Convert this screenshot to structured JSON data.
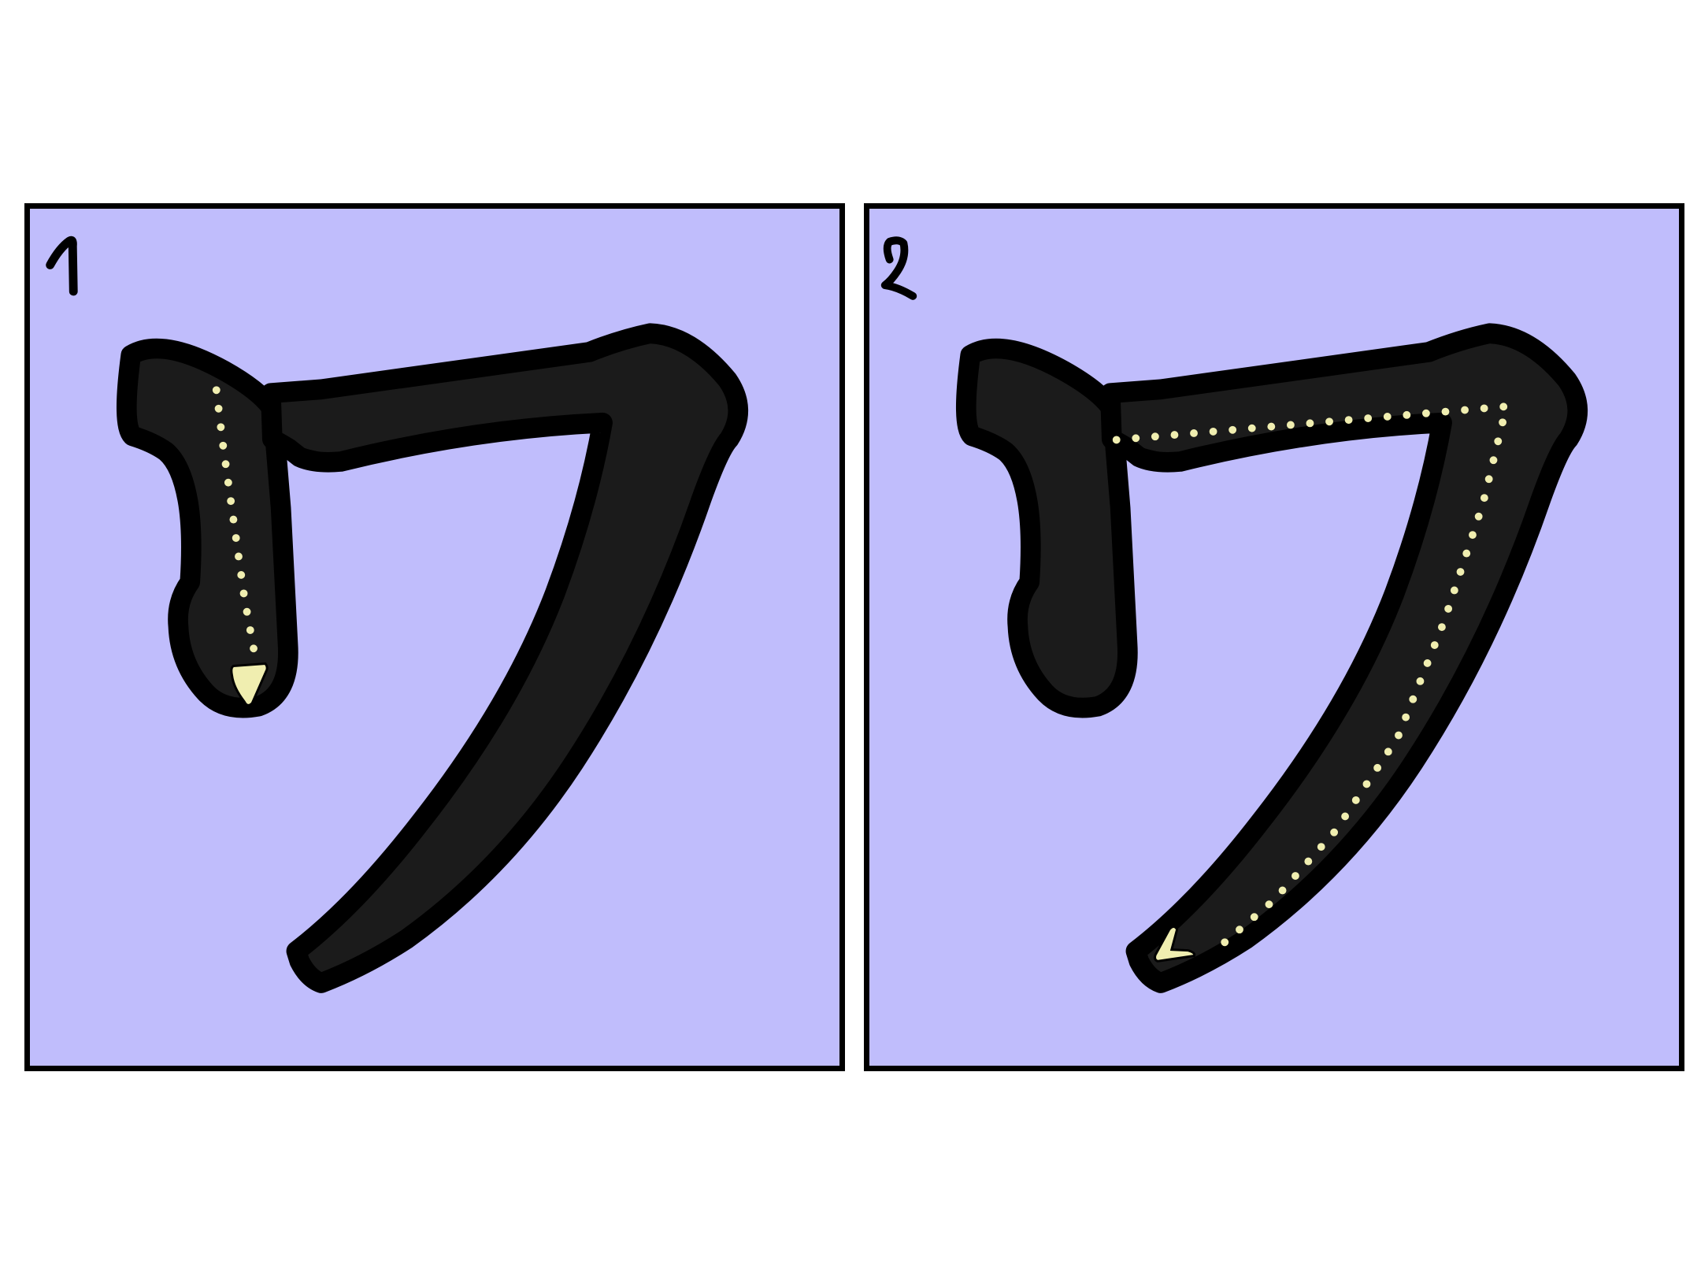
{
  "panels": [
    {
      "step": "1",
      "highlight_color": "#f0eeb0",
      "stroke_fill": "#1b1b1b",
      "background": "#c0bdfc"
    },
    {
      "step": "2",
      "highlight_color": "#f0eeb0",
      "stroke_fill": "#1b1b1b",
      "background": "#c0bdfc"
    }
  ]
}
